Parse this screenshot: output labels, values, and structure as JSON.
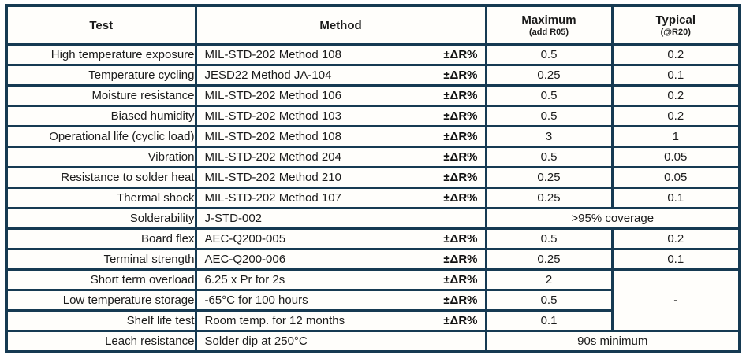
{
  "colors": {
    "border_navy": "#163a52",
    "cell_background": "#fffefb",
    "text": "#1b1b1b"
  },
  "headers": {
    "test": "Test",
    "method": "Method",
    "maximum": "Maximum",
    "maximum_sub": "(add R05)",
    "typical": "Typical",
    "typical_sub": "(@R20)"
  },
  "rows": [
    {
      "test": "High temperature exposure",
      "method": "MIL-STD-202 Method 108",
      "delta": "±ΔR%",
      "max": "0.5",
      "typical": "0.2"
    },
    {
      "test": "Temperature cycling",
      "method": "JESD22 Method JA-104",
      "delta": "±ΔR%",
      "max": "0.25",
      "typical": "0.1"
    },
    {
      "test": "Moisture resistance",
      "method": "MIL-STD-202 Method 106",
      "delta": "±ΔR%",
      "max": "0.5",
      "typical": "0.2"
    },
    {
      "test": "Biased humidity",
      "method": "MIL-STD-202 Method 103",
      "delta": "±ΔR%",
      "max": "0.5",
      "typical": "0.2"
    },
    {
      "test": "Operational life (cyclic load)",
      "method": "MIL-STD-202 Method 108",
      "delta": "±ΔR%",
      "max": "3",
      "typical": "1"
    },
    {
      "test": "Vibration",
      "method": "MIL-STD-202 Method 204",
      "delta": "±ΔR%",
      "max": "0.5",
      "typical": "0.05"
    },
    {
      "test": "Resistance to solder heat",
      "method": "MIL-STD-202 Method 210",
      "delta": "±ΔR%",
      "max": "0.25",
      "typical": "0.05"
    },
    {
      "test": "Thermal shock",
      "method": "MIL-STD-202 Method 107",
      "delta": "±ΔR%",
      "max": "0.25",
      "typical": "0.1"
    },
    {
      "test": "Solderability",
      "method": "J-STD-002",
      "span": ">95% coverage"
    },
    {
      "test": "Board flex",
      "method": "AEC-Q200-005",
      "delta": "±ΔR%",
      "max": "0.5",
      "typical": "0.2"
    },
    {
      "test": "Terminal strength",
      "method": "AEC-Q200-006",
      "delta": "±ΔR%",
      "max": "0.25",
      "typical": "0.1"
    },
    {
      "test": "Short term overload",
      "method": "6.25 x Pr for 2s",
      "delta": "±ΔR%",
      "max": "2",
      "typical_merged": "-"
    },
    {
      "test": "Low temperature storage",
      "method": "-65°C for 100 hours",
      "delta": "±ΔR%",
      "max": "0.5"
    },
    {
      "test": "Shelf life test",
      "method": "Room temp. for 12 months",
      "delta": "±ΔR%",
      "max": "0.1"
    },
    {
      "test": "Leach resistance",
      "method": "Solder dip at 250°C",
      "span": "90s minimum"
    }
  ]
}
